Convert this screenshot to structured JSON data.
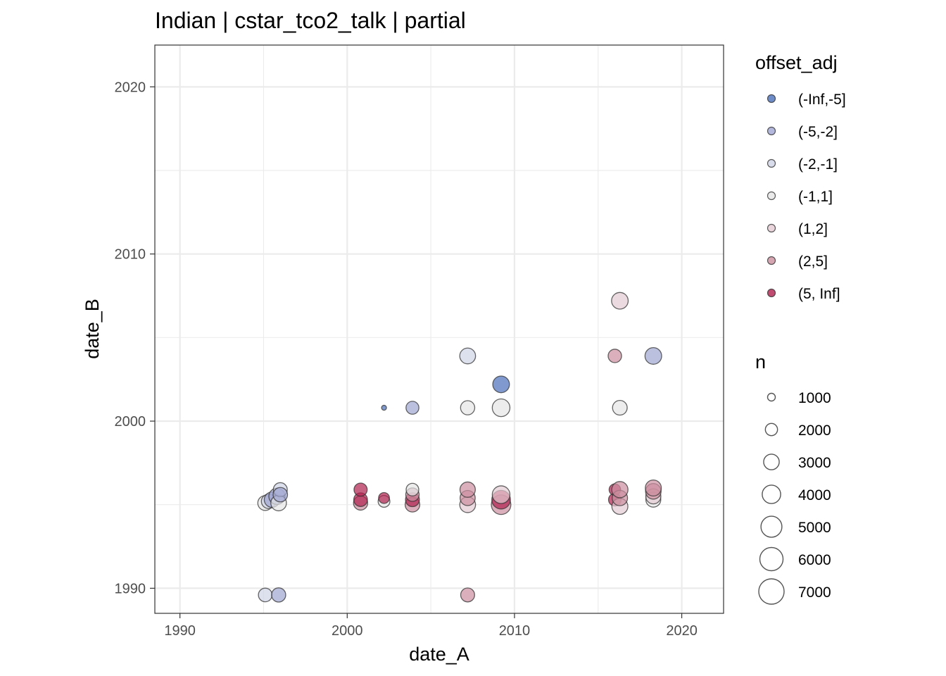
{
  "chart_data": {
    "type": "scatter",
    "title": "Indian | cstar_tco2_talk | partial",
    "xlabel": "date_A",
    "ylabel": "date_B",
    "xlim": [
      1988.5,
      2022.5
    ],
    "ylim": [
      1988.5,
      2022.5
    ],
    "xticks": [
      1990,
      2000,
      2010,
      2020
    ],
    "yticks": [
      1990,
      2000,
      2010,
      2020
    ],
    "x_tick_labels": [
      "1990",
      "2000",
      "2010",
      "2020"
    ],
    "y_tick_labels": [
      "1990",
      "2000",
      "2010",
      "2020"
    ],
    "grid": true,
    "legend_color": {
      "title": "offset_adj",
      "entries": [
        {
          "label": "(-Inf,-5]",
          "color": "#4a6fba"
        },
        {
          "label": "(-5,-2]",
          "color": "#9fa5d2"
        },
        {
          "label": "(-2,-1]",
          "color": "#cfd3e6"
        },
        {
          "label": "(-1,1]",
          "color": "#e5e5e5"
        },
        {
          "label": "(1,2]",
          "color": "#e3cbd2"
        },
        {
          "label": "(2,5]",
          "color": "#cc8f9f"
        },
        {
          "label": "(5, Inf]",
          "color": "#b0204e"
        }
      ]
    },
    "legend_size": {
      "title": "n",
      "entries": [
        {
          "label": "1000",
          "value": 1000
        },
        {
          "label": "2000",
          "value": 2000
        },
        {
          "label": "3000",
          "value": 3000
        },
        {
          "label": "4000",
          "value": 4000
        },
        {
          "label": "5000",
          "value": 5000
        },
        {
          "label": "6000",
          "value": 6000
        },
        {
          "label": "7000",
          "value": 7000
        }
      ]
    },
    "points": [
      {
        "x": 1995.1,
        "y": 1995.1,
        "n": 3200,
        "group": "(-1,1]"
      },
      {
        "x": 1995.3,
        "y": 1995.2,
        "n": 3000,
        "group": "(-2,-1]"
      },
      {
        "x": 1995.5,
        "y": 1995.3,
        "n": 3400,
        "group": "(-5,-2]"
      },
      {
        "x": 1995.8,
        "y": 1995.5,
        "n": 3800,
        "group": "(-5,-2]"
      },
      {
        "x": 1995.9,
        "y": 1995.1,
        "n": 3500,
        "group": "(-1,1]"
      },
      {
        "x": 1996.0,
        "y": 1995.9,
        "n": 2800,
        "group": "(-2,-1]"
      },
      {
        "x": 1996.0,
        "y": 1995.6,
        "n": 3000,
        "group": "(-5,-2]"
      },
      {
        "x": 1995.1,
        "y": 1989.6,
        "n": 2700,
        "group": "(-2,-1]"
      },
      {
        "x": 1995.9,
        "y": 1989.6,
        "n": 2900,
        "group": "(-5,-2]"
      },
      {
        "x": 2000.8,
        "y": 1995.1,
        "n": 2900,
        "group": "(2,5]"
      },
      {
        "x": 2000.8,
        "y": 1995.3,
        "n": 2700,
        "group": "(5, Inf]"
      },
      {
        "x": 2000.8,
        "y": 1995.9,
        "n": 2500,
        "group": "(5, Inf]"
      },
      {
        "x": 2002.2,
        "y": 1995.2,
        "n": 2000,
        "group": "(-1,1]"
      },
      {
        "x": 2002.2,
        "y": 1995.4,
        "n": 1700,
        "group": "(5, Inf]"
      },
      {
        "x": 2002.2,
        "y": 2000.8,
        "n": 300,
        "group": "(-Inf,-5]"
      },
      {
        "x": 2003.9,
        "y": 1995.0,
        "n": 3100,
        "group": "(2,5]"
      },
      {
        "x": 2003.9,
        "y": 1995.3,
        "n": 2800,
        "group": "(5, Inf]"
      },
      {
        "x": 2003.9,
        "y": 1995.6,
        "n": 2600,
        "group": "(2,5]"
      },
      {
        "x": 2003.9,
        "y": 1995.9,
        "n": 2300,
        "group": "(-1,1]"
      },
      {
        "x": 2003.9,
        "y": 2000.8,
        "n": 2400,
        "group": "(-5,-2]"
      },
      {
        "x": 2007.2,
        "y": 1995.0,
        "n": 3600,
        "group": "(1,2]"
      },
      {
        "x": 2007.2,
        "y": 1995.4,
        "n": 3300,
        "group": "(2,5]"
      },
      {
        "x": 2007.2,
        "y": 1995.9,
        "n": 3400,
        "group": "(2,5]"
      },
      {
        "x": 2007.2,
        "y": 1989.6,
        "n": 2800,
        "group": "(2,5]"
      },
      {
        "x": 2007.2,
        "y": 2000.8,
        "n": 2900,
        "group": "(-1,1]"
      },
      {
        "x": 2007.2,
        "y": 2003.9,
        "n": 3600,
        "group": "(-2,-1]"
      },
      {
        "x": 2009.2,
        "y": 1995.0,
        "n": 5500,
        "group": "(2,5]"
      },
      {
        "x": 2009.2,
        "y": 1995.3,
        "n": 5000,
        "group": "(5, Inf]"
      },
      {
        "x": 2009.2,
        "y": 1995.6,
        "n": 4500,
        "group": "(1,2]"
      },
      {
        "x": 2009.2,
        "y": 2000.8,
        "n": 4500,
        "group": "(-1,1]"
      },
      {
        "x": 2009.2,
        "y": 2002.2,
        "n": 4000,
        "group": "(-Inf,-5]"
      },
      {
        "x": 2016.0,
        "y": 1995.3,
        "n": 2300,
        "group": "(5, Inf]"
      },
      {
        "x": 2016.0,
        "y": 1995.9,
        "n": 1900,
        "group": "(5, Inf]"
      },
      {
        "x": 2016.0,
        "y": 2003.9,
        "n": 2600,
        "group": "(2,5]"
      },
      {
        "x": 2016.3,
        "y": 1994.9,
        "n": 3700,
        "group": "(1,2]"
      },
      {
        "x": 2016.3,
        "y": 1995.4,
        "n": 3400,
        "group": "(2,5]"
      },
      {
        "x": 2016.3,
        "y": 1995.9,
        "n": 3800,
        "group": "(2,5]"
      },
      {
        "x": 2016.3,
        "y": 2000.8,
        "n": 3100,
        "group": "(-1,1]"
      },
      {
        "x": 2016.3,
        "y": 2007.2,
        "n": 4000,
        "group": "(1,2]"
      },
      {
        "x": 2018.3,
        "y": 1995.3,
        "n": 3200,
        "group": "(-1,1]"
      },
      {
        "x": 2018.3,
        "y": 1995.5,
        "n": 3300,
        "group": "(1,2]"
      },
      {
        "x": 2018.3,
        "y": 1995.8,
        "n": 3500,
        "group": "(2,5]"
      },
      {
        "x": 2018.3,
        "y": 1996.0,
        "n": 3700,
        "group": "(2,5]"
      },
      {
        "x": 2018.3,
        "y": 2003.9,
        "n": 4000,
        "group": "(-5,-2]"
      }
    ]
  }
}
